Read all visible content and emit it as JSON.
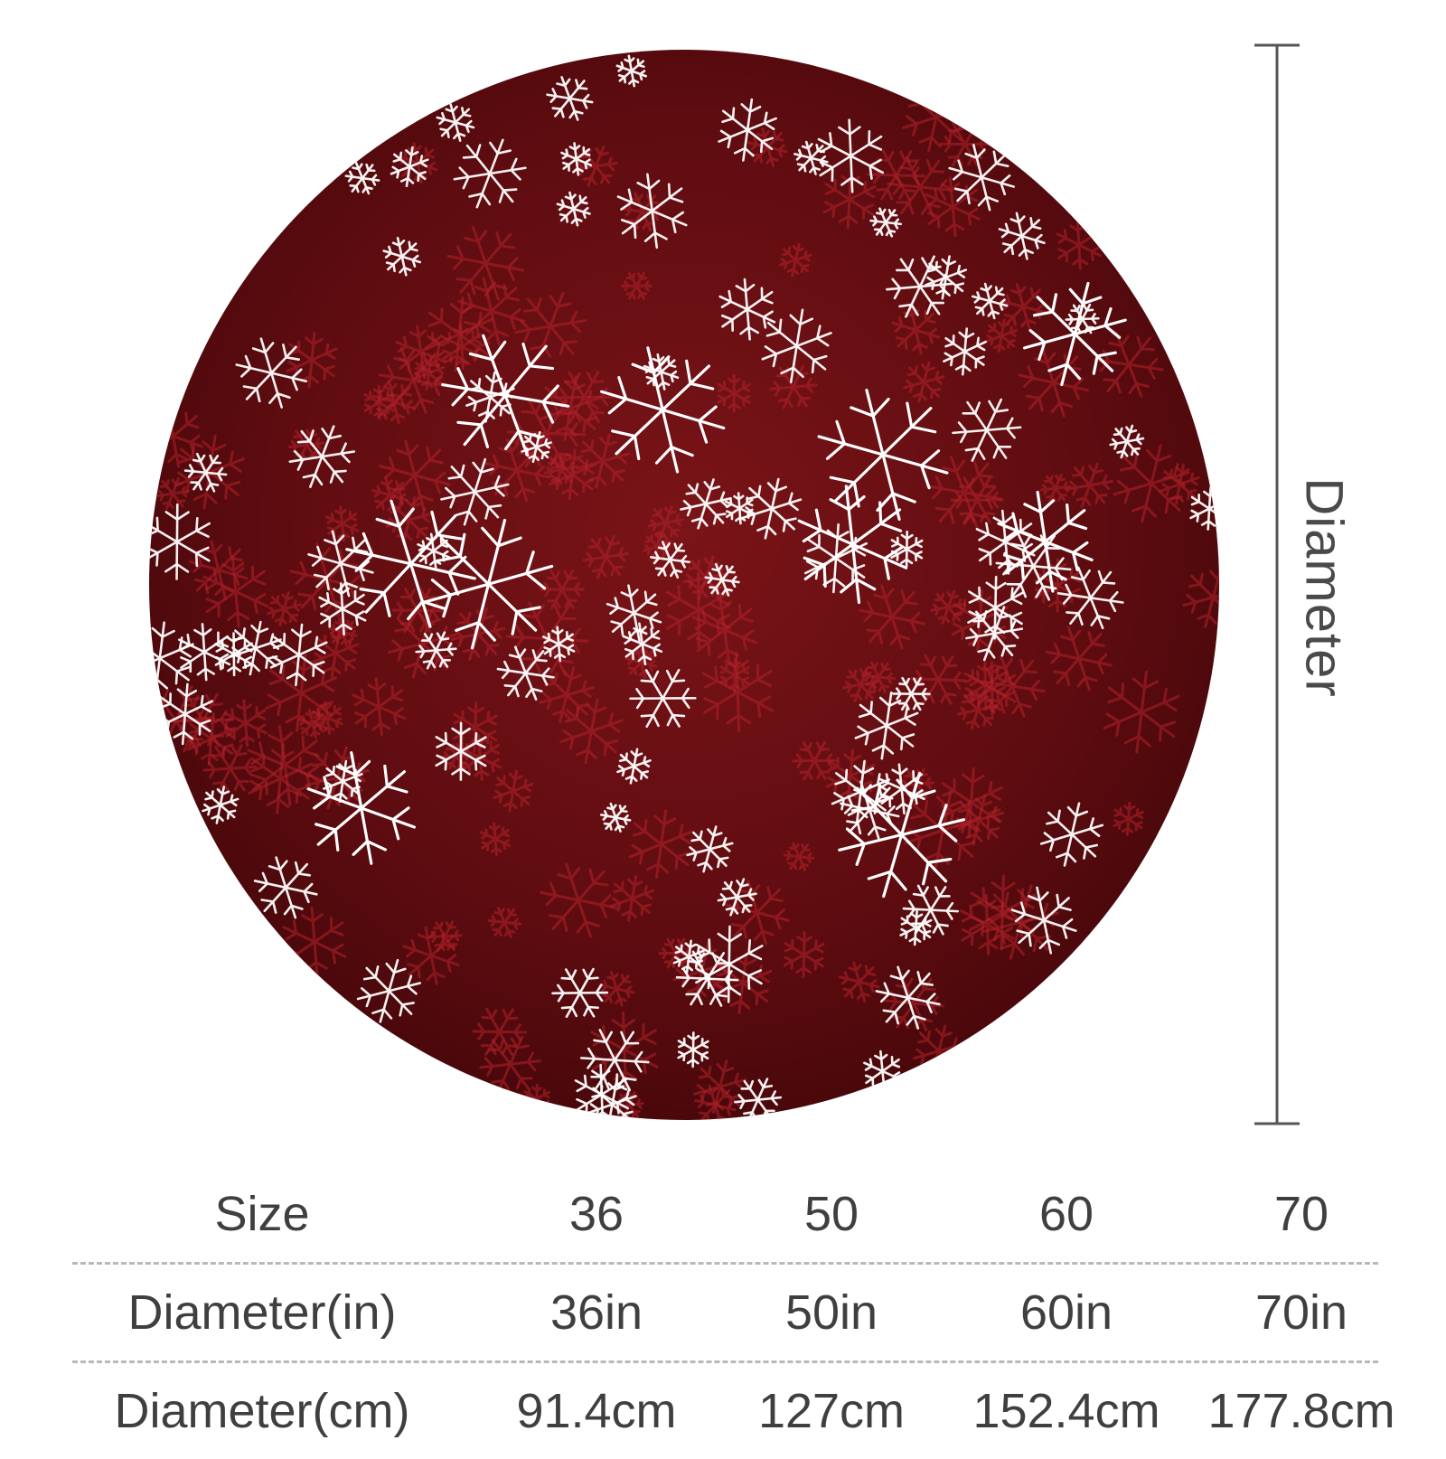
{
  "product": {
    "image_name": "round-snowflake-rug",
    "background_color": "#6e0f12",
    "snow_color": "#ffffff",
    "dimension_label": "Diameter"
  },
  "size_table": {
    "rows": [
      {
        "header": "Size",
        "values": [
          "36",
          "50",
          "60",
          "70"
        ]
      },
      {
        "header": "Diameter(in)",
        "values": [
          "36in",
          "50in",
          "60in",
          "70in"
        ]
      },
      {
        "header": "Diameter(cm)",
        "values": [
          "91.4cm",
          "127cm",
          "152.4cm",
          "177.8cm"
        ]
      }
    ]
  }
}
